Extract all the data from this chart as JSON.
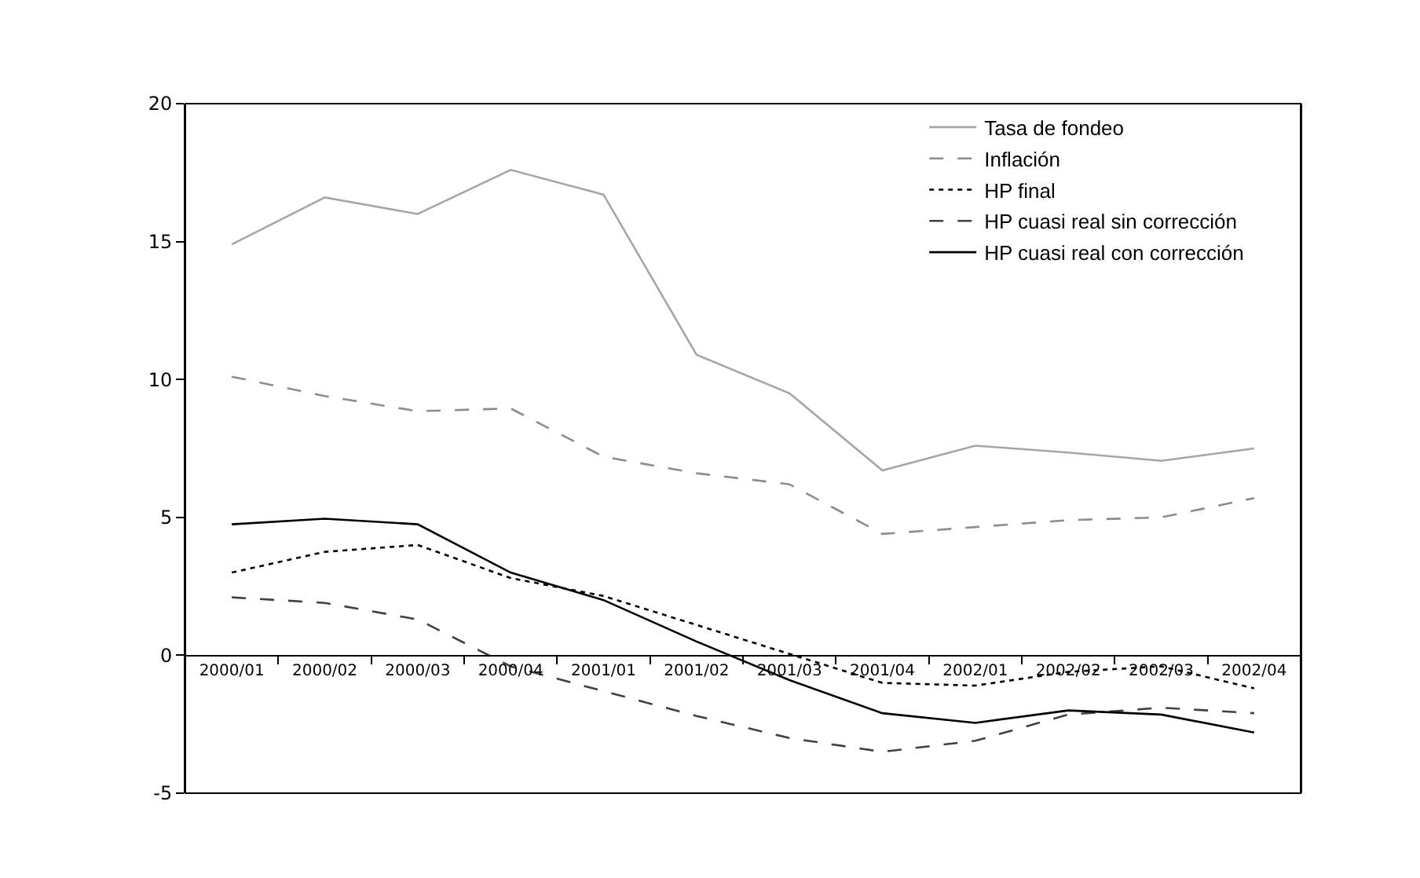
{
  "chart_data": {
    "type": "line",
    "categories": [
      "2000/01",
      "2000/02",
      "2000/03",
      "2000/04",
      "2001/01",
      "2001/02",
      "2001/03",
      "2001/04",
      "2002/01",
      "2002/02",
      "2002/03",
      "2002/04"
    ],
    "series": [
      {
        "name": "Tasa de fondeo",
        "color": "#a6a6a6",
        "line_style": "solid",
        "values": [
          14.9,
          16.6,
          16.0,
          17.6,
          16.7,
          10.9,
          9.5,
          6.7,
          7.6,
          7.35,
          7.05,
          7.5
        ]
      },
      {
        "name": "Inflación",
        "color": "#8c8c8c",
        "line_style": "dashed",
        "values": [
          10.1,
          9.4,
          8.85,
          8.95,
          7.2,
          6.6,
          6.2,
          4.4,
          4.65,
          4.9,
          5.0,
          5.7
        ]
      },
      {
        "name": "HP final",
        "color": "#000000",
        "line_style": "dotted",
        "values": [
          3.0,
          3.75,
          4.0,
          2.8,
          2.15,
          1.1,
          0.05,
          -1.0,
          -1.1,
          -0.6,
          -0.4,
          -1.2
        ]
      },
      {
        "name": "HP cuasi real sin corrección",
        "color": "#404040",
        "line_style": "dashed",
        "values": [
          2.1,
          1.9,
          1.3,
          -0.4,
          -1.3,
          -2.2,
          -3.0,
          -3.5,
          -3.1,
          -2.15,
          -1.9,
          -2.1
        ]
      },
      {
        "name": "HP cuasi real con corrección",
        "color": "#000000",
        "line_style": "solid",
        "values": [
          4.75,
          4.95,
          4.75,
          3.0,
          2.0,
          0.5,
          -0.9,
          -2.1,
          -2.45,
          -2.0,
          -2.15,
          -2.8
        ]
      }
    ],
    "ylim": [
      -5,
      20
    ],
    "yticks": [
      -5,
      0,
      5,
      10,
      15,
      20
    ],
    "grid": false,
    "legend": "top right",
    "marker": "none"
  }
}
